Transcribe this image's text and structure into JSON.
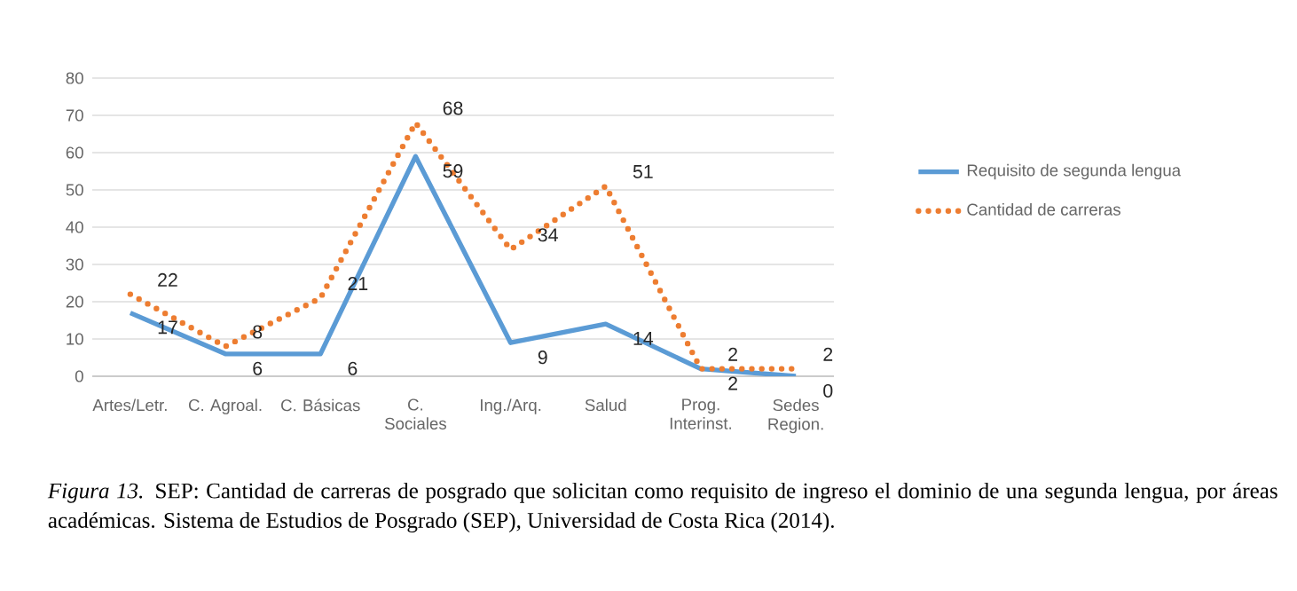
{
  "chart_data": {
    "type": "line",
    "categories": [
      "Artes/Letr.",
      "C. Agroal.",
      "C. Básicas",
      "C. Sociales",
      "Ing./Arq.",
      "Salud",
      "Prog. Interinst.",
      "Sedes Region."
    ],
    "series": [
      {
        "name": "Requisito de segunda lengua",
        "color": "#5b9bd5",
        "line_style": "solid",
        "values": [
          17,
          6,
          6,
          59,
          9,
          14,
          2,
          0
        ]
      },
      {
        "name": "Cantidad de carreras",
        "color": "#ed7d31",
        "line_style": "dotted",
        "values": [
          22,
          8,
          21,
          68,
          34,
          51,
          2,
          2
        ]
      }
    ],
    "ylim": [
      0,
      80
    ],
    "yticks": [
      0,
      10,
      20,
      30,
      40,
      50,
      60,
      70,
      80
    ],
    "grid": "y",
    "legend": "right",
    "data_labels": true,
    "marker": "none",
    "annotations": [
      "*Figura 13.* SEP: Cantidad de carreras de posgrado que solicitan como requisito de ingreso el dominio de una segunda lengua, por áreas académicas. Sistema de Estudios de Posgrado (SEP), Universidad de Costa Rica (2014)."
    ]
  }
}
